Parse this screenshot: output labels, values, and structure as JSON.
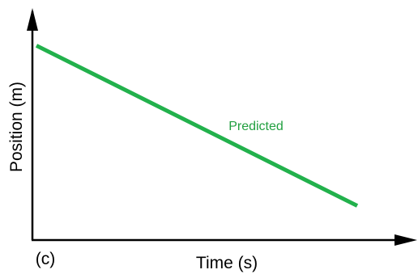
{
  "chart_data": {
    "type": "line",
    "panel_label": "(c)",
    "xlabel": "Time (s)",
    "ylabel": "Position (m)",
    "x_ticks_shown": false,
    "y_ticks_shown": false,
    "grid": false,
    "series": [
      {
        "name": "Predicted",
        "color": "#22b14c",
        "x": [
          0,
          1
        ],
        "y": [
          0.85,
          0.15
        ]
      }
    ]
  }
}
